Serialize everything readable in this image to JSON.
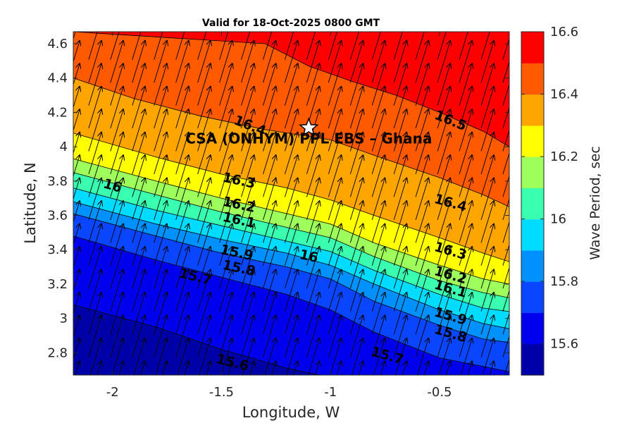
{
  "chart_data": {
    "type": "filled-contour",
    "title": "Valid for 18-Oct-2025 0800 GMT",
    "xlabel": "Longitude, W",
    "ylabel": "Latitude, N",
    "xlim": [
      -2.18,
      -0.18
    ],
    "ylim": [
      2.67,
      4.67
    ],
    "xticks": [
      -2,
      -1.5,
      -1,
      -0.5
    ],
    "xtick_labels": [
      "-2",
      "-1.5",
      "-1",
      "-0.5"
    ],
    "yticks": [
      2.8,
      3,
      3.2,
      3.4,
      3.6,
      3.8,
      4,
      4.2,
      4.4,
      4.6
    ],
    "ytick_labels": [
      "2.8",
      "3",
      "3.2",
      "3.4",
      "3.6",
      "3.8",
      "4",
      "4.2",
      "4.4",
      "4.6"
    ],
    "colorbar": {
      "label": "Wave Period, sec",
      "range": [
        15.5,
        16.6
      ],
      "ticks": [
        15.6,
        15.8,
        16,
        16.2,
        16.4,
        16.6
      ],
      "tick_labels": [
        "15.6",
        "15.8",
        "16",
        "16.2",
        "16.4",
        "16.6"
      ],
      "colors": [
        "#0000A8",
        "#0000EE",
        "#0A46FF",
        "#0091FF",
        "#00DCFF",
        "#3AFFB0",
        "#9EFF5C",
        "#FFFF00",
        "#FFA500",
        "#FF5A00",
        "#FF0000"
      ]
    },
    "contour_levels": [
      15.6,
      15.7,
      15.8,
      15.9,
      16.0,
      16.1,
      16.2,
      16.3,
      16.4,
      16.5
    ],
    "contour_lines": [
      {
        "level": 15.6,
        "points": [
          [
            -2.18,
            3.08
          ],
          [
            -1.8,
            2.95
          ],
          [
            -1.5,
            2.82
          ],
          [
            -1.2,
            2.71
          ],
          [
            -1.05,
            2.67
          ]
        ]
      },
      {
        "level": 15.7,
        "points": [
          [
            -2.18,
            3.48
          ],
          [
            -1.8,
            3.34
          ],
          [
            -1.5,
            3.24
          ],
          [
            -1.2,
            3.14
          ],
          [
            -1.0,
            3.05
          ],
          [
            -0.8,
            2.92
          ],
          [
            -0.5,
            2.77
          ],
          [
            -0.3,
            2.72
          ],
          [
            -0.18,
            2.69
          ]
        ]
      },
      {
        "level": 15.8,
        "points": [
          [
            -2.18,
            3.61
          ],
          [
            -1.8,
            3.48
          ],
          [
            -1.5,
            3.38
          ],
          [
            -1.2,
            3.3
          ],
          [
            -1.0,
            3.23
          ],
          [
            -0.8,
            3.1
          ],
          [
            -0.5,
            2.96
          ],
          [
            -0.3,
            2.88
          ],
          [
            -0.18,
            2.86
          ]
        ]
      },
      {
        "level": 15.9,
        "points": [
          [
            -2.18,
            3.68
          ],
          [
            -1.8,
            3.55
          ],
          [
            -1.5,
            3.46
          ],
          [
            -1.2,
            3.38
          ],
          [
            -1.0,
            3.31
          ],
          [
            -0.8,
            3.2
          ],
          [
            -0.5,
            3.05
          ],
          [
            -0.3,
            2.97
          ],
          [
            -0.18,
            2.94
          ]
        ]
      },
      {
        "level": 16.0,
        "points": [
          [
            -2.18,
            3.76
          ],
          [
            -1.8,
            3.63
          ],
          [
            -1.5,
            3.54
          ],
          [
            -1.2,
            3.45
          ],
          [
            -1.0,
            3.39
          ],
          [
            -0.8,
            3.28
          ],
          [
            -0.5,
            3.14
          ],
          [
            -0.3,
            3.06
          ],
          [
            -0.18,
            3.04
          ]
        ]
      },
      {
        "level": 16.1,
        "points": [
          [
            -2.18,
            3.85
          ],
          [
            -1.8,
            3.72
          ],
          [
            -1.5,
            3.62
          ],
          [
            -1.2,
            3.53
          ],
          [
            -1.0,
            3.47
          ],
          [
            -0.8,
            3.36
          ],
          [
            -0.5,
            3.22
          ],
          [
            -0.3,
            3.15
          ],
          [
            -0.18,
            3.12
          ]
        ]
      },
      {
        "level": 16.2,
        "points": [
          [
            -2.18,
            3.93
          ],
          [
            -1.8,
            3.8
          ],
          [
            -1.5,
            3.7
          ],
          [
            -1.2,
            3.61
          ],
          [
            -1.0,
            3.55
          ],
          [
            -0.8,
            3.44
          ],
          [
            -0.5,
            3.31
          ],
          [
            -0.3,
            3.23
          ],
          [
            -0.18,
            3.2
          ]
        ]
      },
      {
        "level": 16.3,
        "points": [
          [
            -2.18,
            4.08
          ],
          [
            -1.8,
            3.94
          ],
          [
            -1.5,
            3.84
          ],
          [
            -1.2,
            3.76
          ],
          [
            -1.0,
            3.69
          ],
          [
            -0.8,
            3.6
          ],
          [
            -0.5,
            3.47
          ],
          [
            -0.3,
            3.38
          ],
          [
            -0.18,
            3.33
          ]
        ]
      },
      {
        "level": 16.4,
        "points": [
          [
            -2.18,
            4.4
          ],
          [
            -1.9,
            4.28
          ],
          [
            -1.6,
            4.18
          ],
          [
            -1.3,
            4.1
          ],
          [
            -1.0,
            4.04
          ],
          [
            -0.8,
            3.95
          ],
          [
            -0.5,
            3.82
          ],
          [
            -0.3,
            3.72
          ],
          [
            -0.18,
            3.65
          ]
        ]
      },
      {
        "level": 16.5,
        "points": [
          [
            -2.18,
            4.67
          ],
          [
            -1.3,
            4.6
          ],
          [
            -1.1,
            4.47
          ],
          [
            -0.9,
            4.38
          ],
          [
            -0.7,
            4.3
          ],
          [
            -0.5,
            4.2
          ],
          [
            -0.3,
            4.09
          ],
          [
            -0.18,
            4.0
          ]
        ]
      }
    ],
    "contour_labels": [
      {
        "text": "15.6",
        "x": -1.45,
        "y": 2.74,
        "angle": 14
      },
      {
        "text": "15.7",
        "x": -1.62,
        "y": 3.24,
        "angle": 14
      },
      {
        "text": "15.7",
        "x": -0.74,
        "y": 2.78,
        "angle": 16
      },
      {
        "text": "15.8",
        "x": -1.42,
        "y": 3.29,
        "angle": 12
      },
      {
        "text": "15.8",
        "x": -0.45,
        "y": 2.91,
        "angle": 16
      },
      {
        "text": "15.9",
        "x": -1.43,
        "y": 3.38,
        "angle": 12
      },
      {
        "text": "15.9",
        "x": -0.45,
        "y": 3.01,
        "angle": 16
      },
      {
        "text": "16",
        "x": -2.0,
        "y": 3.77,
        "angle": 16
      },
      {
        "text": "16",
        "x": -1.1,
        "y": 3.36,
        "angle": 12
      },
      {
        "text": "16.1",
        "x": -1.42,
        "y": 3.57,
        "angle": 12
      },
      {
        "text": "16.1",
        "x": -0.45,
        "y": 3.17,
        "angle": 16
      },
      {
        "text": "16.2",
        "x": -1.42,
        "y": 3.66,
        "angle": 12
      },
      {
        "text": "16.2",
        "x": -0.45,
        "y": 3.25,
        "angle": 16
      },
      {
        "text": "16.3",
        "x": -1.42,
        "y": 3.8,
        "angle": 12
      },
      {
        "text": "16.3",
        "x": -0.45,
        "y": 3.39,
        "angle": 16
      },
      {
        "text": "16.4",
        "x": -1.37,
        "y": 4.12,
        "angle": 22
      },
      {
        "text": "16.4",
        "x": -0.45,
        "y": 3.67,
        "angle": 16
      },
      {
        "text": "16.5",
        "x": -0.45,
        "y": 4.15,
        "angle": 22
      }
    ],
    "annotation": {
      "text": "CSA (ONHYM) PPL EBS  – Ghana",
      "x": -1.1,
      "y": 4.11,
      "marker": "star"
    },
    "vector_field": {
      "direction_deg": 17,
      "nx": 21,
      "ny": 16
    }
  }
}
